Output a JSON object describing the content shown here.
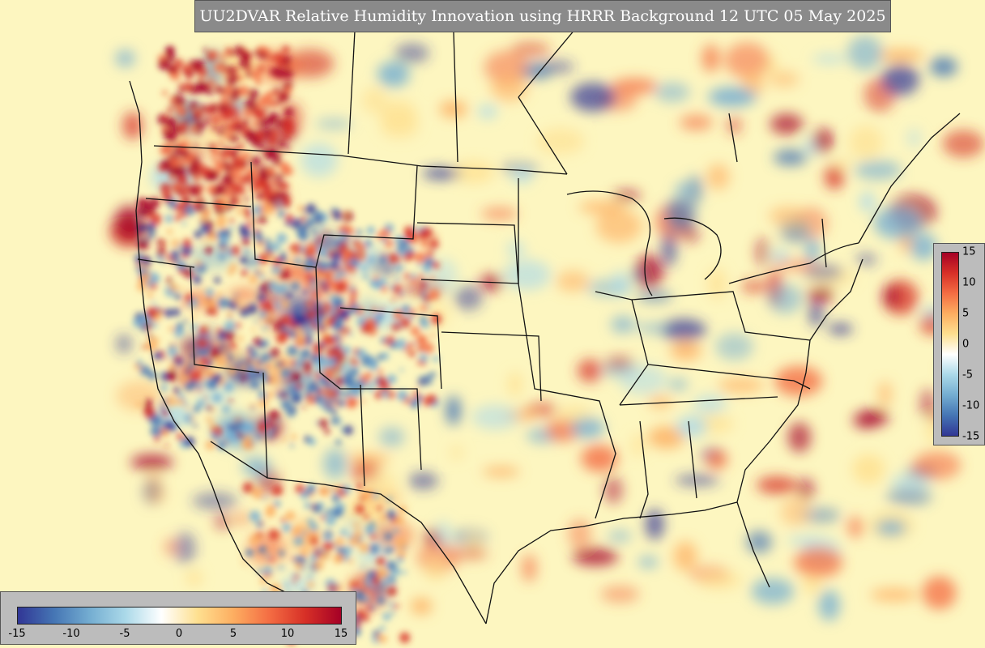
{
  "title": "UU2DVAR Relative Humidity Innovation using HRRR Background 12 UTC 05 May 2025",
  "colorbar": {
    "min": -15,
    "max": 15,
    "ticks": [
      "-15",
      "-10",
      "-5",
      "0",
      "5",
      "10",
      "15"
    ],
    "colors": [
      "#313695",
      "#4575b4",
      "#74add1",
      "#abd9e9",
      "#ffffff",
      "#fee090",
      "#fdae61",
      "#f46d43",
      "#d73027",
      "#a50026"
    ]
  },
  "map": {
    "background_color": "#fdf6c0",
    "region": "CONUS"
  }
}
